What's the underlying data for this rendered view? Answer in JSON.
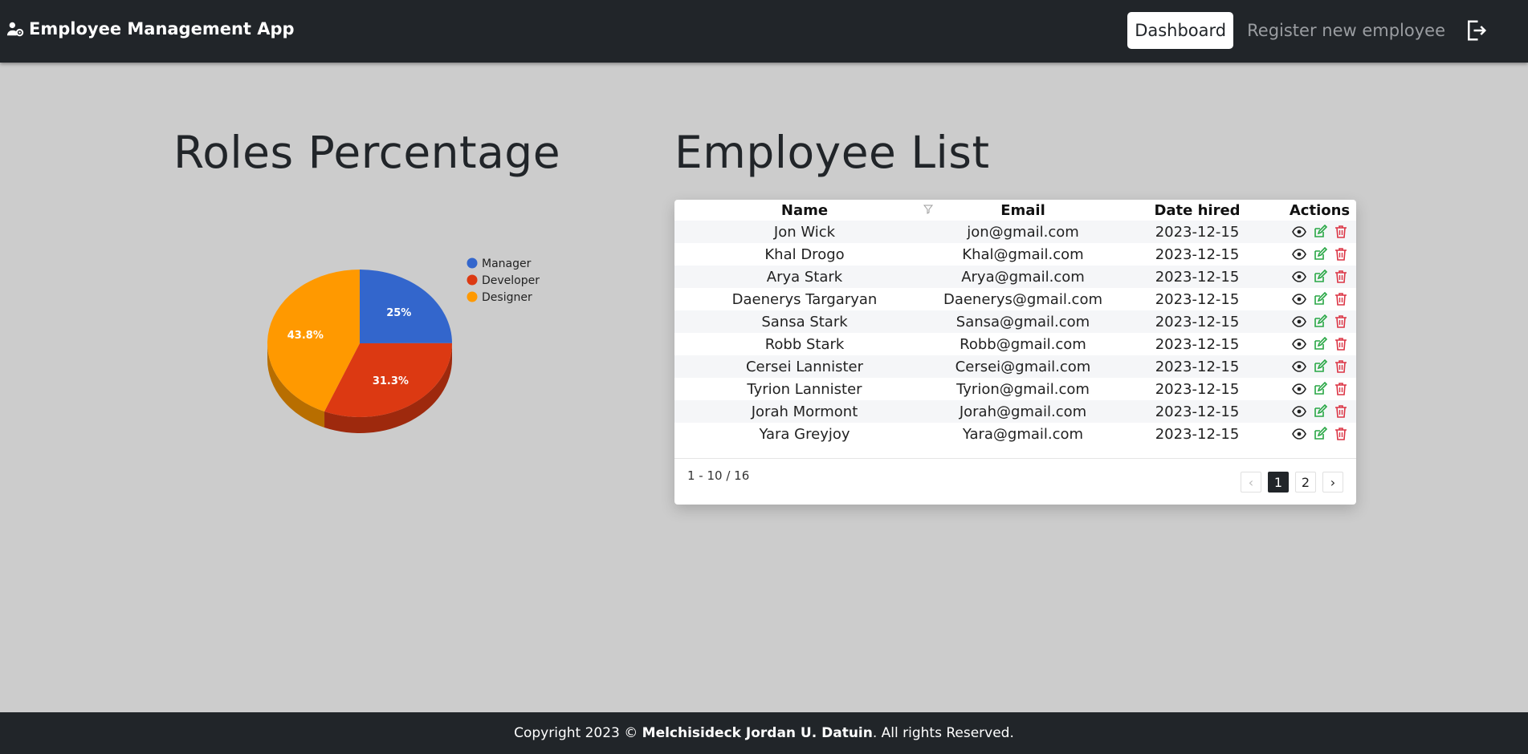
{
  "navbar": {
    "brand": "Employee Management App",
    "brand_icon": "user-gear-icon",
    "links": [
      {
        "label": "Dashboard",
        "active": true
      },
      {
        "label": "Register new employee",
        "active": false
      }
    ],
    "logout_icon": "logout-icon"
  },
  "roles_section": {
    "title": "Roles Percentage"
  },
  "list_section": {
    "title": "Employee List",
    "columns": [
      "Name",
      "Email",
      "Date hired",
      "Actions"
    ],
    "rows": [
      {
        "name": "Jon Wick",
        "email": "jon@gmail.com",
        "date": "2023-12-15"
      },
      {
        "name": "Khal Drogo",
        "email": "Khal@gmail.com",
        "date": "2023-12-15"
      },
      {
        "name": "Arya Stark",
        "email": "Arya@gmail.com",
        "date": "2023-12-15"
      },
      {
        "name": "Daenerys Targaryan",
        "email": "Daenerys@gmail.com",
        "date": "2023-12-15"
      },
      {
        "name": "Sansa Stark",
        "email": "Sansa@gmail.com",
        "date": "2023-12-15"
      },
      {
        "name": "Robb Stark",
        "email": "Robb@gmail.com",
        "date": "2023-12-15"
      },
      {
        "name": "Cersei Lannister",
        "email": "Cersei@gmail.com",
        "date": "2023-12-15"
      },
      {
        "name": "Tyrion Lannister",
        "email": "Tyrion@gmail.com",
        "date": "2023-12-15"
      },
      {
        "name": "Jorah Mormont",
        "email": "Jorah@gmail.com",
        "date": "2023-12-15"
      },
      {
        "name": "Yara Greyjoy",
        "email": "Yara@gmail.com",
        "date": "2023-12-15"
      }
    ],
    "action_icons": [
      "eye-icon",
      "edit-icon",
      "trash-icon"
    ],
    "range": "1 - 10 / 16",
    "pager": {
      "prev": "‹",
      "pages": [
        "1",
        "2"
      ],
      "next": "›",
      "current": "1"
    }
  },
  "chart_data": {
    "type": "pie",
    "categories": [
      "Manager",
      "Developer",
      "Designer"
    ],
    "values": [
      25,
      31.3,
      43.8
    ],
    "labels": [
      "25%",
      "31.3%",
      "43.8%"
    ],
    "colors": [
      "#3366cc",
      "#dc3912",
      "#ff9900"
    ],
    "is3D": true,
    "legend": "right"
  },
  "footer": {
    "prefix": "Copyright 2023 © ",
    "author": "Melchisideck Jordan U. Datuin",
    "suffix": ". All rights Reserved."
  }
}
